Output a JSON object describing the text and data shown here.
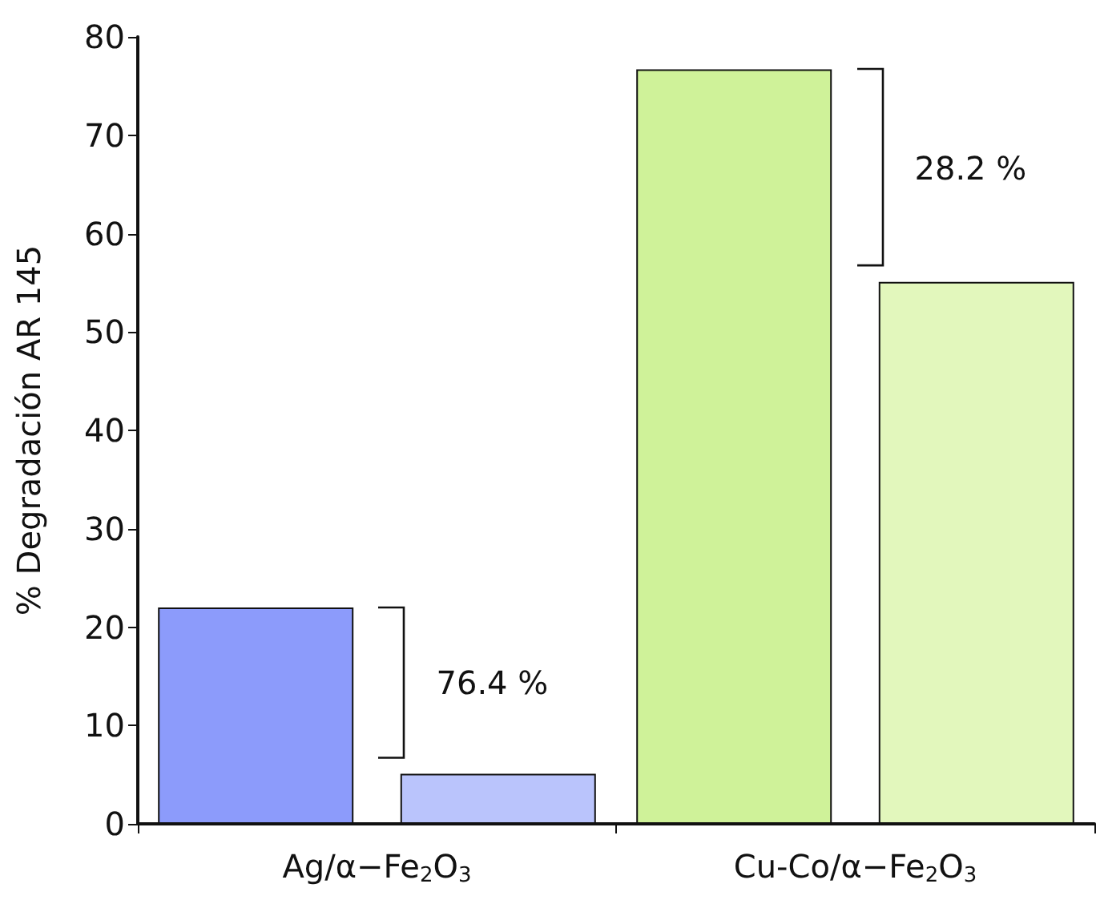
{
  "chart_data": {
    "type": "bar",
    "ylabel": "% Degradación AR 145",
    "categories": [
      "Ag/α−Fe$_{2}$O$_{3}$",
      "Cu-Co/α−Fe$_{2}$O$_{3}$"
    ],
    "series": [
      {
        "colors": [
          "#8c9bfb",
          "#cff299"
        ],
        "values": [
          22.0,
          76.7
        ]
      },
      {
        "colors": [
          "#bac4fc",
          "#e2f7bc"
        ],
        "values": [
          5.1,
          55.1
        ]
      }
    ],
    "ylim": [
      0,
      80
    ],
    "yticks": [
      0,
      10,
      20,
      30,
      40,
      50,
      60,
      70,
      80
    ],
    "grid": false,
    "annotations": [
      "76.4 %",
      "28.2 %"
    ]
  }
}
